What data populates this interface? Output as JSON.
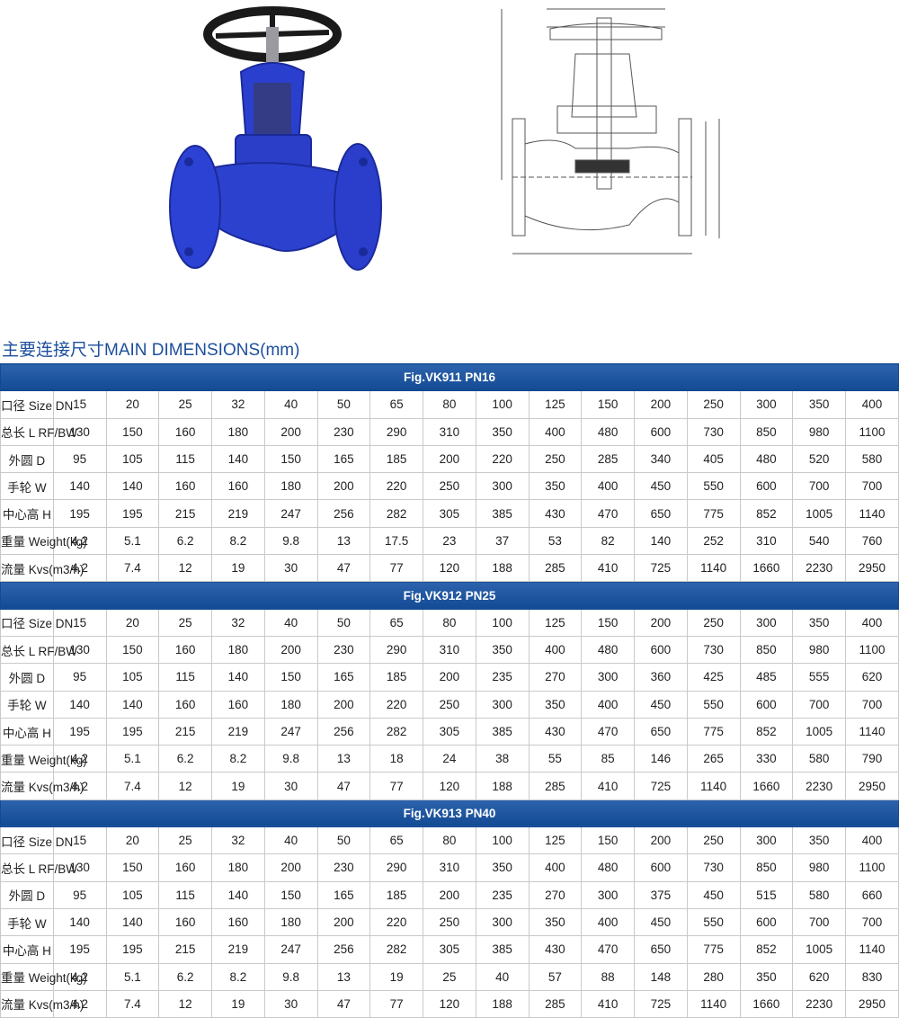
{
  "title": "主要连接尺寸MAIN DIMENSIONS(mm)",
  "sections": [
    {
      "header": "Fig.VK911 PN16",
      "rows": [
        {
          "label": "口径  Size  DN",
          "values": [
            15,
            20,
            25,
            32,
            40,
            50,
            65,
            80,
            100,
            125,
            150,
            200,
            250,
            300,
            350,
            400
          ]
        },
        {
          "label": "总长  L  RF/BW",
          "values": [
            130,
            150,
            160,
            180,
            200,
            230,
            290,
            310,
            350,
            400,
            480,
            600,
            730,
            850,
            980,
            1100
          ]
        },
        {
          "label": "外圆  D",
          "values": [
            95,
            105,
            115,
            140,
            150,
            165,
            185,
            200,
            220,
            250,
            285,
            340,
            405,
            480,
            520,
            580
          ]
        },
        {
          "label": "手轮  W",
          "values": [
            140,
            140,
            160,
            160,
            180,
            200,
            220,
            250,
            300,
            350,
            400,
            450,
            550,
            600,
            700,
            700
          ]
        },
        {
          "label": "中心高  H",
          "values": [
            195,
            195,
            215,
            219,
            247,
            256,
            282,
            305,
            385,
            430,
            470,
            650,
            775,
            852,
            1005,
            1140
          ]
        },
        {
          "label": "重量  Weight(kg)",
          "values": [
            4.2,
            5.1,
            6.2,
            8.2,
            9.8,
            13,
            17.5,
            23,
            37,
            53,
            82,
            140,
            252,
            310,
            540,
            760
          ]
        },
        {
          "label": "流量  Kvs(m3/h)",
          "values": [
            4.2,
            7.4,
            12,
            19,
            30,
            47,
            77,
            120,
            188,
            285,
            410,
            725,
            1140,
            1660,
            2230,
            2950
          ]
        }
      ]
    },
    {
      "header": "Fig.VK912 PN25",
      "rows": [
        {
          "label": "口径  Size  DN",
          "values": [
            15,
            20,
            25,
            32,
            40,
            50,
            65,
            80,
            100,
            125,
            150,
            200,
            250,
            300,
            350,
            400
          ]
        },
        {
          "label": "总长  L  RF/BW",
          "values": [
            130,
            150,
            160,
            180,
            200,
            230,
            290,
            310,
            350,
            400,
            480,
            600,
            730,
            850,
            980,
            1100
          ]
        },
        {
          "label": "外圆  D",
          "values": [
            95,
            105,
            115,
            140,
            150,
            165,
            185,
            200,
            235,
            270,
            300,
            360,
            425,
            485,
            555,
            620
          ]
        },
        {
          "label": "手轮  W",
          "values": [
            140,
            140,
            160,
            160,
            180,
            200,
            220,
            250,
            300,
            350,
            400,
            450,
            550,
            600,
            700,
            700
          ]
        },
        {
          "label": "中心高  H",
          "values": [
            195,
            195,
            215,
            219,
            247,
            256,
            282,
            305,
            385,
            430,
            470,
            650,
            775,
            852,
            1005,
            1140
          ]
        },
        {
          "label": "重量  Weight(kg)",
          "values": [
            4.2,
            5.1,
            6.2,
            8.2,
            9.8,
            13,
            18,
            24,
            38,
            55,
            85,
            146,
            265,
            330,
            580,
            790
          ]
        },
        {
          "label": "流量  Kvs(m3/h)",
          "values": [
            4.2,
            7.4,
            12,
            19,
            30,
            47,
            77,
            120,
            188,
            285,
            410,
            725,
            1140,
            1660,
            2230,
            2950
          ]
        }
      ]
    },
    {
      "header": "Fig.VK913 PN40",
      "rows": [
        {
          "label": "口径  Size  DN",
          "values": [
            15,
            20,
            25,
            32,
            40,
            50,
            65,
            80,
            100,
            125,
            150,
            200,
            250,
            300,
            350,
            400
          ]
        },
        {
          "label": "总长  L  RF/BW",
          "values": [
            130,
            150,
            160,
            180,
            200,
            230,
            290,
            310,
            350,
            400,
            480,
            600,
            730,
            850,
            980,
            1100
          ]
        },
        {
          "label": "外圆  D",
          "values": [
            95,
            105,
            115,
            140,
            150,
            165,
            185,
            200,
            235,
            270,
            300,
            375,
            450,
            515,
            580,
            660
          ]
        },
        {
          "label": "手轮  W",
          "values": [
            140,
            140,
            160,
            160,
            180,
            200,
            220,
            250,
            300,
            350,
            400,
            450,
            550,
            600,
            700,
            700
          ]
        },
        {
          "label": "中心高  H",
          "values": [
            195,
            195,
            215,
            219,
            247,
            256,
            282,
            305,
            385,
            430,
            470,
            650,
            775,
            852,
            1005,
            1140
          ]
        },
        {
          "label": "重量  Weight(kg)",
          "values": [
            4.2,
            5.1,
            6.2,
            8.2,
            9.8,
            13,
            19,
            25,
            40,
            57,
            88,
            148,
            280,
            350,
            620,
            830
          ]
        },
        {
          "label": "流量  Kvs(m3/h)",
          "values": [
            4.2,
            7.4,
            12,
            19,
            30,
            47,
            77,
            120,
            188,
            285,
            410,
            725,
            1140,
            1660,
            2230,
            2950
          ]
        }
      ]
    }
  ]
}
